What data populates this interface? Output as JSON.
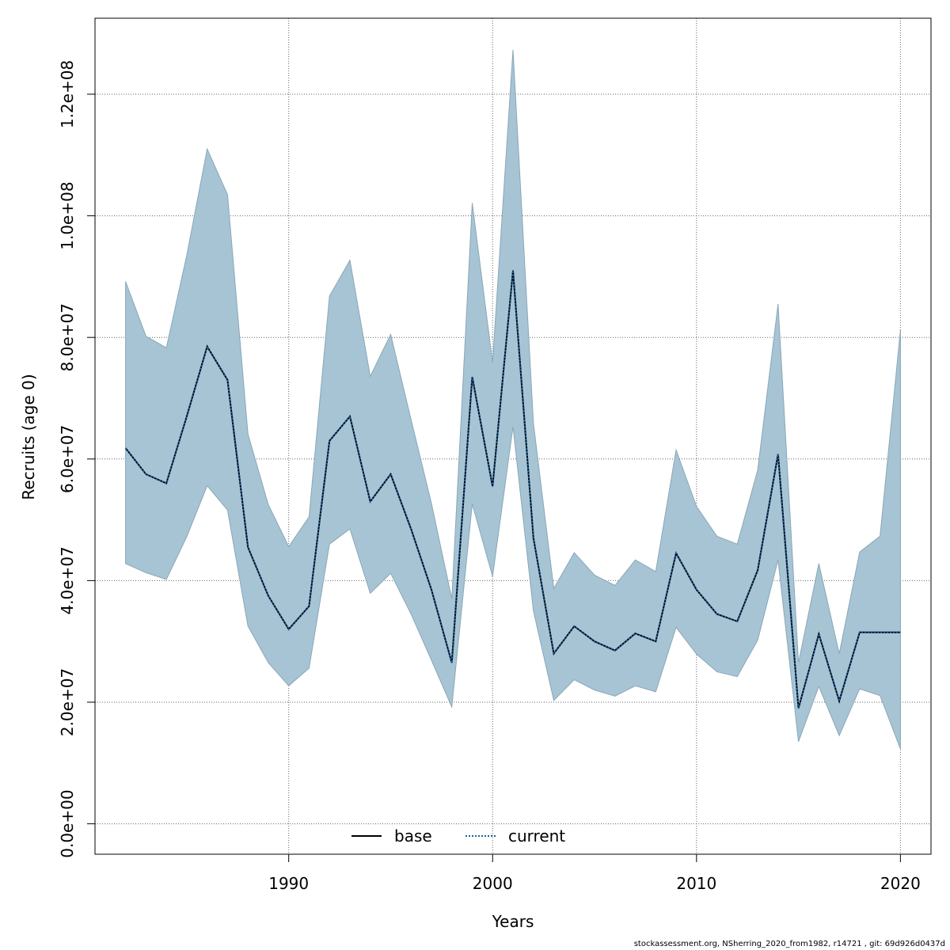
{
  "footer": "stockassessment.org, NSherring_2020_from1982, r14721 , git: 69d926d0437d",
  "chart_data": {
    "type": "area",
    "xlabel": "Years",
    "ylabel": "Recruits (age 0)",
    "xlim": [
      1980.5,
      2021.5
    ],
    "ylim": [
      -5000000,
      132500000
    ],
    "xticks": [
      1990,
      2000,
      2010,
      2020
    ],
    "yticks": [
      0,
      20000000,
      40000000,
      60000000,
      80000000,
      100000000,
      120000000
    ],
    "ytick_labels": [
      "0.0e+00",
      "2.0e+07",
      "4.0e+07",
      "6.0e+07",
      "8.0e+07",
      "1.0e+08",
      "1.2e+08"
    ],
    "grid": true,
    "legend_position": "bottom-center",
    "colors": {
      "band": "#a6c4d4",
      "band_edge": "#8aa7b8",
      "base": "#000000",
      "current": "#1f5f9f"
    },
    "x": [
      1982,
      1983,
      1984,
      1985,
      1986,
      1987,
      1988,
      1989,
      1990,
      1991,
      1992,
      1993,
      1994,
      1995,
      1996,
      1997,
      1998,
      1999,
      2000,
      2001,
      2002,
      2003,
      2004,
      2005,
      2006,
      2007,
      2008,
      2009,
      2010,
      2011,
      2012,
      2013,
      2014,
      2015,
      2016,
      2017,
      2018,
      2019,
      2020
    ],
    "series": [
      {
        "name": "base",
        "style": "solid",
        "values": [
          61800000,
          57500000,
          56000000,
          67000000,
          78500000,
          73000000,
          45500000,
          37500000,
          32000000,
          35800000,
          63000000,
          67000000,
          53000000,
          57500000,
          48500000,
          38500000,
          26500000,
          73500000,
          55500000,
          91000000,
          47000000,
          28000000,
          32500000,
          30000000,
          28500000,
          31300000,
          30000000,
          44500000,
          38500000,
          34500000,
          33300000,
          41700000,
          60800000,
          19000000,
          31200000,
          20200000,
          31500000,
          31500000,
          31500000
        ]
      },
      {
        "name": "current",
        "style": "dotted",
        "values": [
          61800000,
          57500000,
          56000000,
          67000000,
          78500000,
          73000000,
          45500000,
          37500000,
          32000000,
          35800000,
          63000000,
          67000000,
          53000000,
          57500000,
          48500000,
          38500000,
          26500000,
          73500000,
          55500000,
          91000000,
          47000000,
          28000000,
          32500000,
          30000000,
          28500000,
          31300000,
          30000000,
          44500000,
          38500000,
          34500000,
          33300000,
          41700000,
          60800000,
          19000000,
          31200000,
          20200000,
          31500000,
          31500000,
          31500000
        ]
      }
    ],
    "band": {
      "lower": [
        42800000,
        41300000,
        40200000,
        47200000,
        55600000,
        51600000,
        32500000,
        26500000,
        22700000,
        25600000,
        46000000,
        48500000,
        37900000,
        41200000,
        34500000,
        26900000,
        19200000,
        52600000,
        40700000,
        65300000,
        35000000,
        20300000,
        23700000,
        22000000,
        21000000,
        22700000,
        21700000,
        32300000,
        27900000,
        25000000,
        24200000,
        30200000,
        43400000,
        13500000,
        22600000,
        14500000,
        22200000,
        21100000,
        12300000
      ],
      "upper": [
        89200000,
        80200000,
        78300000,
        93500000,
        111000000,
        103500000,
        64100000,
        52500000,
        45600000,
        50500000,
        86800000,
        92700000,
        73600000,
        80500000,
        66500000,
        52700000,
        37000000,
        102100000,
        75900000,
        127300000,
        65900000,
        38700000,
        44600000,
        40900000,
        39200000,
        43400000,
        41500000,
        61500000,
        52200000,
        47300000,
        46000000,
        58200000,
        85500000,
        26500000,
        42800000,
        28000000,
        44700000,
        47300000,
        81200000
      ]
    }
  }
}
